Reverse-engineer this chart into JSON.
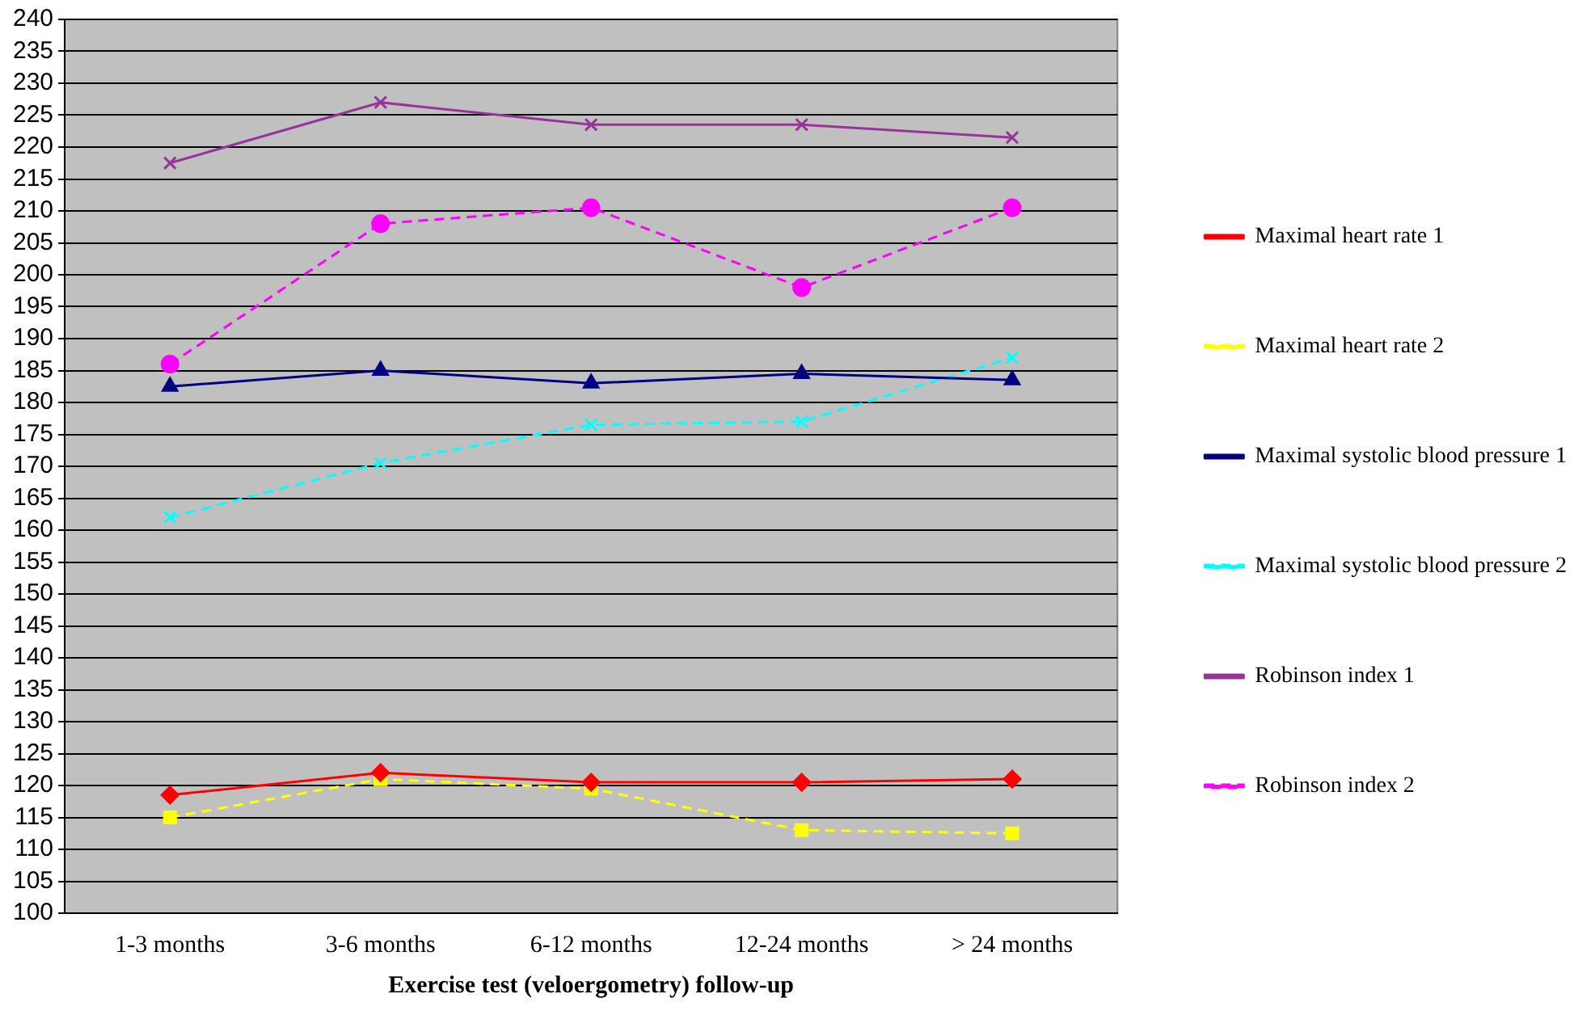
{
  "chart_data": {
    "type": "line",
    "xlabel": "Exercise test (veloergometry) follow-up",
    "categories": [
      "1-3 months",
      "3-6 months",
      "6-12 months",
      "12-24 months",
      "> 24 months"
    ],
    "series": [
      {
        "name": "Maximal heart rate 1",
        "color": "#ff0000",
        "values": [
          118.5,
          122,
          120.5,
          120.5,
          121
        ],
        "marker": "diamond",
        "line_style": "solid"
      },
      {
        "name": "Maximal heart rate 2",
        "color": "#ffff00",
        "values": [
          115,
          121,
          119.5,
          113,
          112.5
        ],
        "marker": "square",
        "line_style": "dashed"
      },
      {
        "name": "Maximal systolic blood pressure 1",
        "color": "#000080",
        "values": [
          182.5,
          185,
          183,
          184.5,
          183.5
        ],
        "marker": "triangle",
        "line_style": "solid"
      },
      {
        "name": "Maximal systolic blood pressure 2",
        "color": "#00ffff",
        "values": [
          162,
          170.5,
          176.5,
          177,
          187
        ],
        "marker": "cross",
        "line_style": "dashed"
      },
      {
        "name": "Robinson index 1",
        "color": "#993399",
        "values": [
          217.5,
          227,
          223.5,
          223.5,
          221.5
        ],
        "marker": "cross",
        "line_style": "solid"
      },
      {
        "name": "Robinson index 2",
        "color": "#ff00ff",
        "values": [
          186,
          208,
          210.5,
          198,
          210.5
        ],
        "marker": "circle",
        "line_style": "dashed"
      }
    ],
    "ylim": [
      100,
      240
    ],
    "yticks": [
      100,
      105,
      110,
      115,
      120,
      125,
      130,
      135,
      140,
      145,
      150,
      155,
      160,
      165,
      170,
      175,
      180,
      185,
      190,
      195,
      200,
      205,
      210,
      215,
      220,
      225,
      230,
      235,
      240
    ],
    "grid": "y",
    "legend": "right"
  }
}
